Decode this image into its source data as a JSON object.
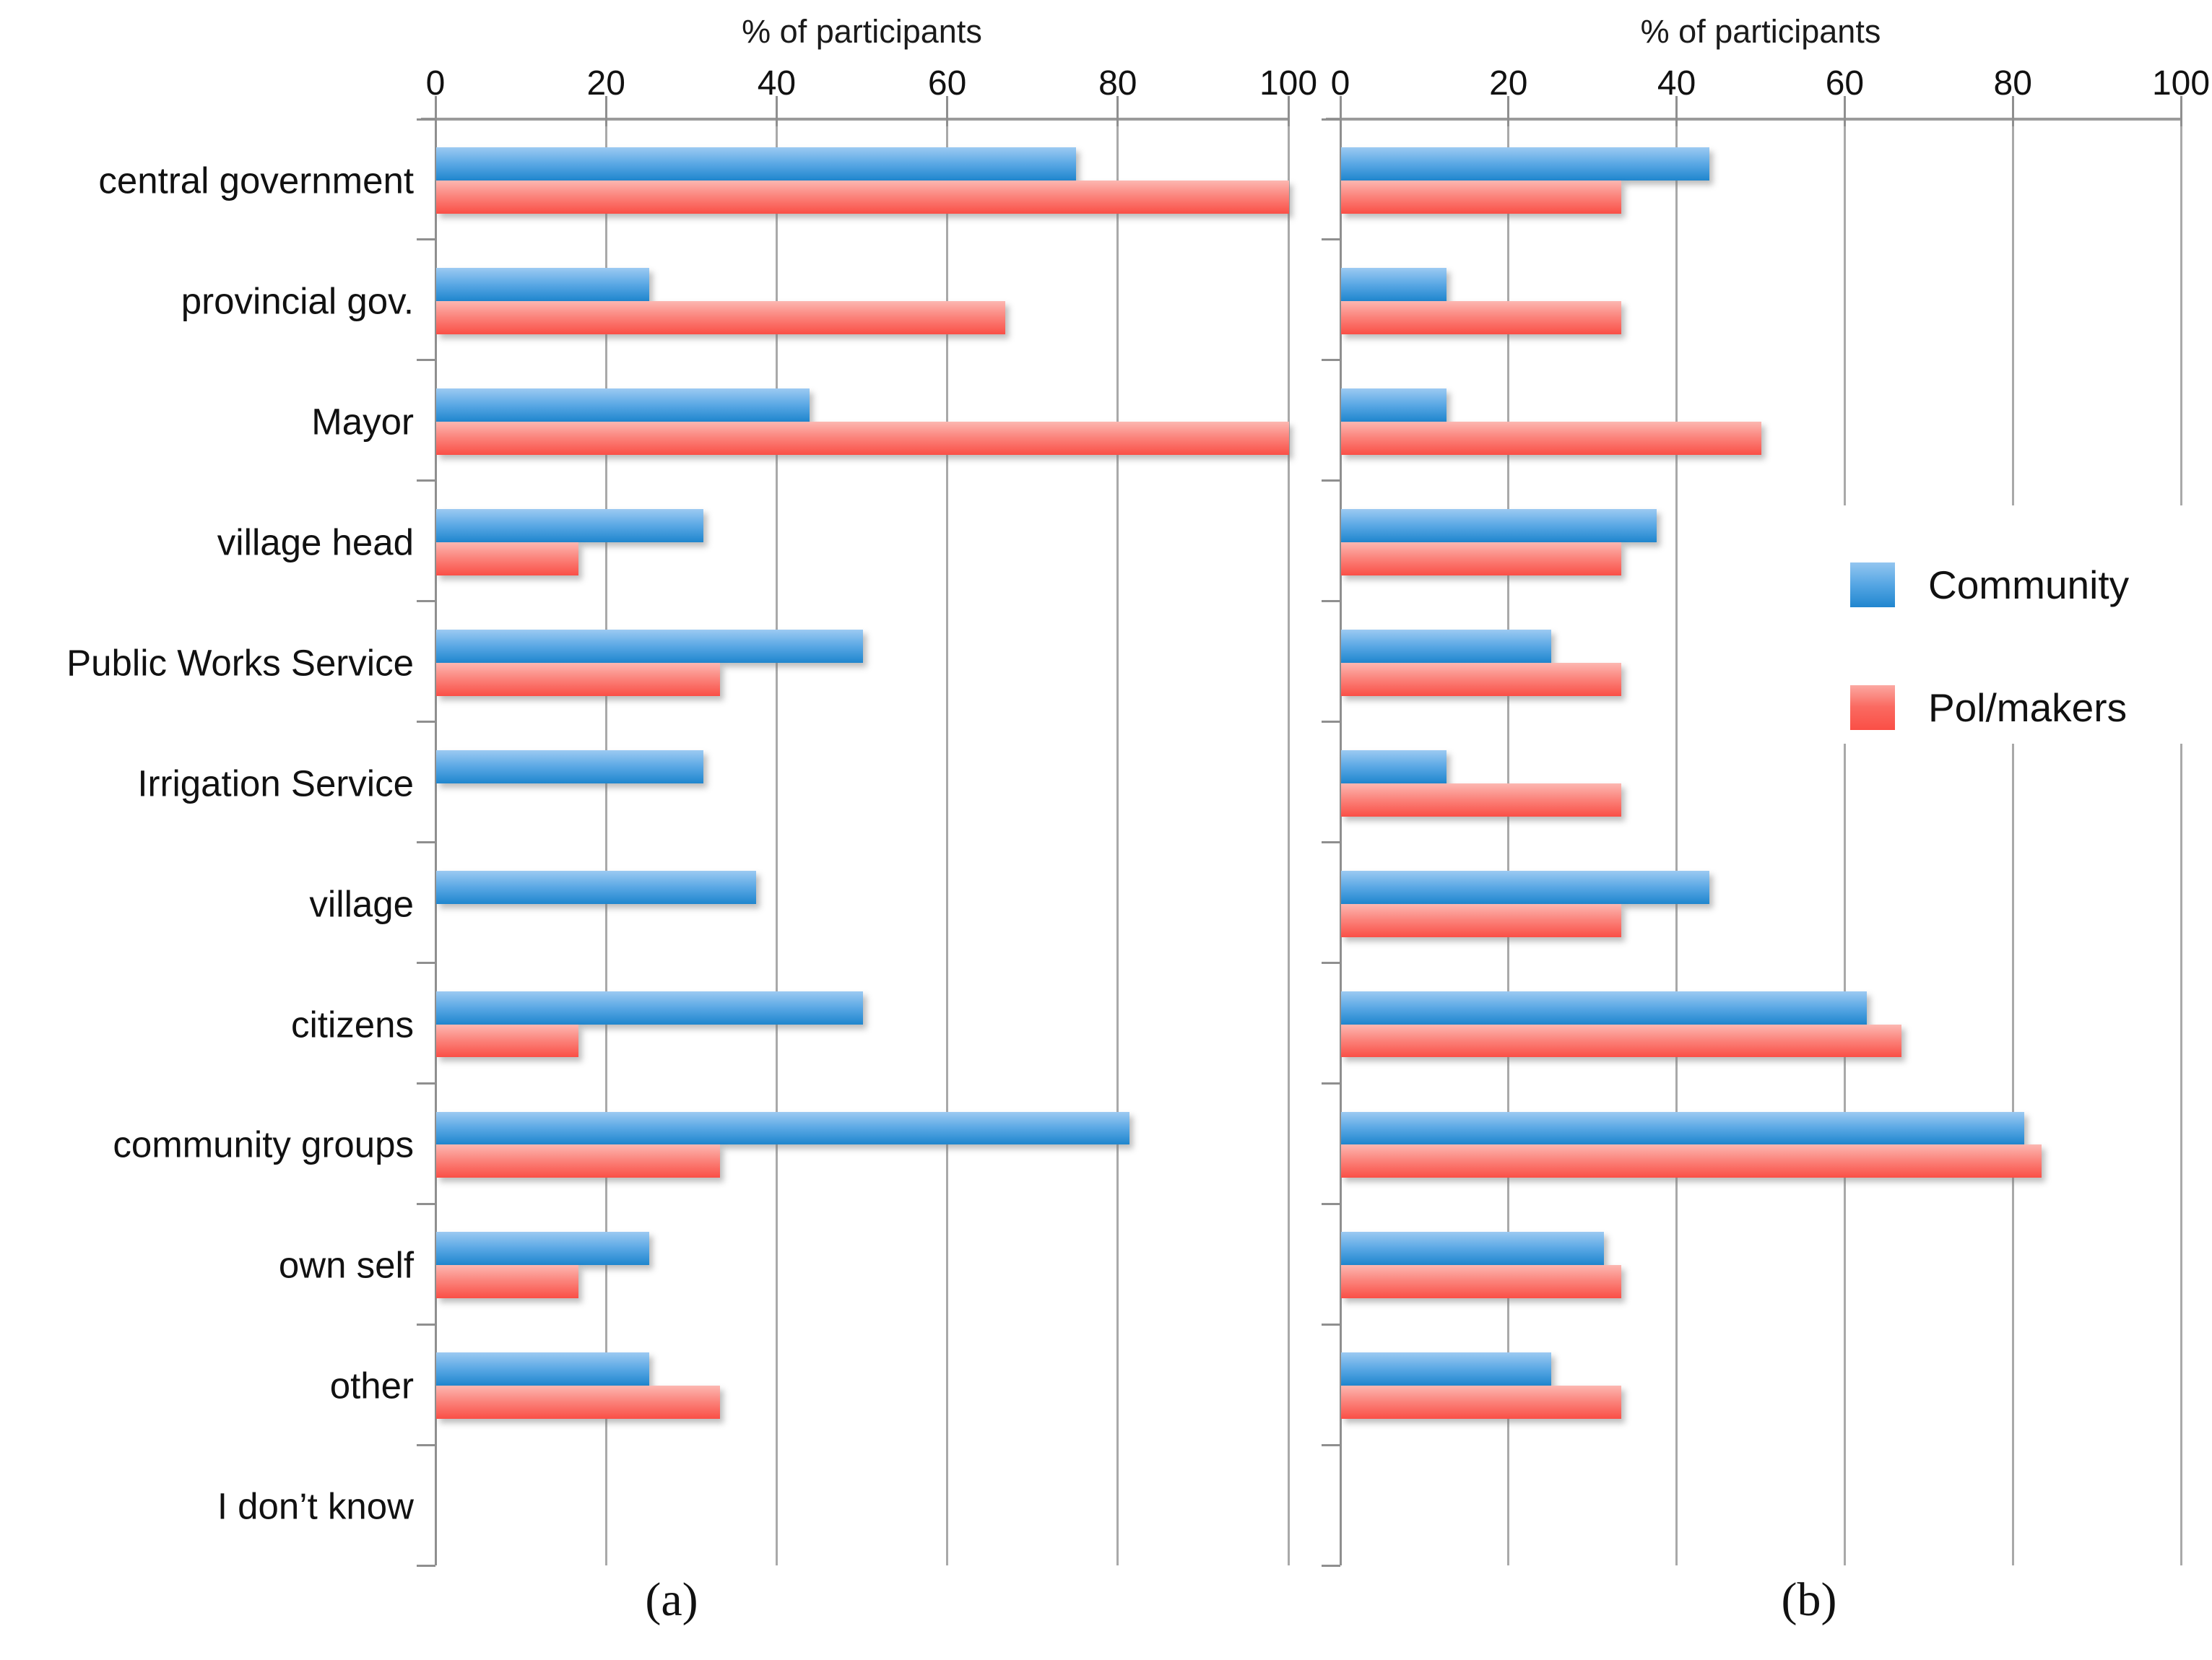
{
  "figure": {
    "axis_title": "% of participants",
    "legend": [
      {
        "label": "Community",
        "color": "#2e93d8"
      },
      {
        "label": "Pol/makers",
        "color": "#fa5a52"
      }
    ]
  },
  "chart_data": [
    {
      "panel": "a",
      "caption": "(a)",
      "type": "bar",
      "orientation": "horizontal",
      "xlabel": "% of participants",
      "xlim": [
        0,
        100
      ],
      "xticks": [
        0,
        20,
        40,
        60,
        80,
        100
      ],
      "grid": true,
      "legend_position": "right-overlay-on-panel-b",
      "categories": [
        "central government",
        "provincial gov.",
        "Mayor",
        "village head",
        "Public Works Service",
        "Irrigation Service",
        "village",
        "citizens",
        "community groups",
        "own self",
        "other",
        "I don’t know"
      ],
      "series": [
        {
          "name": "Community",
          "color": "#2e93d8",
          "values": [
            75,
            25,
            43.8,
            31.3,
            50,
            31.3,
            37.5,
            50,
            81.3,
            25,
            25,
            0
          ]
        },
        {
          "name": "Pol/makers",
          "color": "#fa5a52",
          "values": [
            100,
            66.7,
            100,
            16.7,
            33.3,
            0,
            0,
            16.7,
            33.3,
            16.7,
            33.3,
            0
          ]
        }
      ]
    },
    {
      "panel": "b",
      "caption": "(b)",
      "type": "bar",
      "orientation": "horizontal",
      "xlabel": "% of participants",
      "xlim": [
        0,
        100
      ],
      "xticks": [
        0,
        20,
        40,
        60,
        80,
        100
      ],
      "grid": true,
      "categories": [
        "central government",
        "provincial gov.",
        "Mayor",
        "village head",
        "Public Works Service",
        "Irrigation Service",
        "village",
        "citizens",
        "community groups",
        "own self",
        "other",
        "I don’t know"
      ],
      "series": [
        {
          "name": "Community",
          "color": "#2e93d8",
          "values": [
            43.8,
            12.5,
            12.5,
            37.5,
            25,
            12.5,
            43.8,
            62.5,
            81.3,
            31.3,
            25,
            0
          ]
        },
        {
          "name": "Pol/makers",
          "color": "#fa5a52",
          "values": [
            33.3,
            33.3,
            50,
            33.3,
            33.3,
            33.3,
            33.3,
            66.7,
            83.3,
            33.3,
            33.3,
            0
          ]
        }
      ]
    }
  ]
}
